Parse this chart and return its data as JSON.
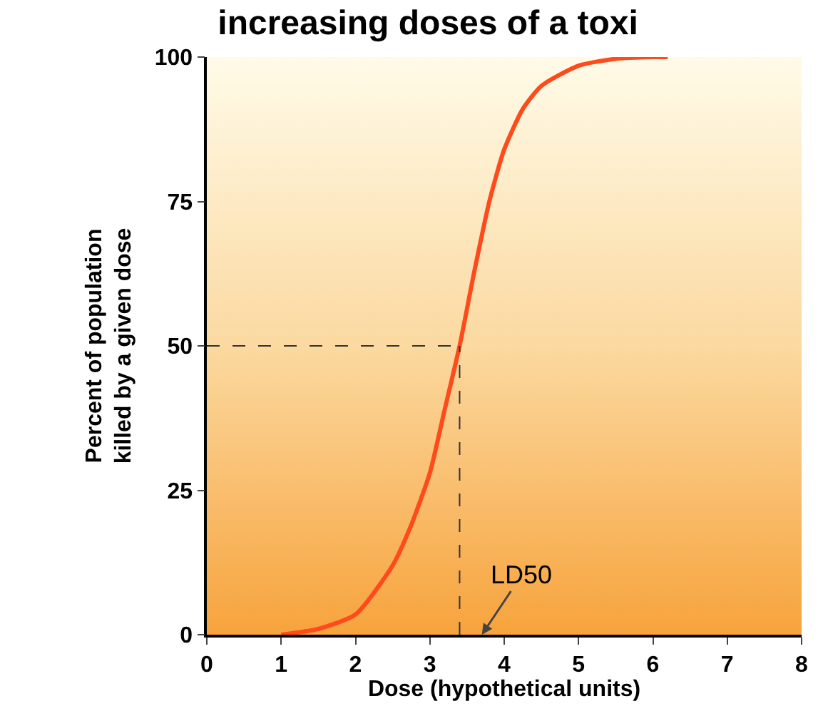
{
  "chart_data": {
    "type": "line",
    "title": "increasing doses of a toxi",
    "xlabel": "Dose (hypothetical units)",
    "ylabel": "Percent of population\nkilled by a given dose",
    "x": [
      1,
      1.5,
      2,
      2.5,
      2.75,
      3,
      3.2,
      3.4,
      3.6,
      3.8,
      4,
      4.25,
      4.5,
      5,
      5.5,
      6,
      6.2
    ],
    "series": [
      {
        "color": "#ff4a1c",
        "values": [
          0,
          1,
          3.5,
          12,
          19,
          28,
          39,
          50,
          63,
          75,
          84,
          91,
          95,
          98.5,
          99.7,
          100,
          100
        ]
      }
    ],
    "xlim": [
      0,
      8
    ],
    "xticks": [
      0,
      1,
      2,
      3,
      4,
      5,
      6,
      7,
      8
    ],
    "ylim": [
      0,
      100
    ],
    "yticks": [
      0,
      25,
      50,
      75,
      100
    ],
    "grid": false,
    "marker": "none",
    "line_style": "solid",
    "ref_lines": [
      {
        "axis": "y",
        "value": 50,
        "line_style": "dashed",
        "color": "#333333"
      },
      {
        "axis": "x",
        "value": 3.4,
        "line_style": "dashed",
        "color": "#333333"
      }
    ],
    "annotations": [
      {
        "text": "LD50",
        "x": 3.4,
        "y": 0
      }
    ]
  }
}
